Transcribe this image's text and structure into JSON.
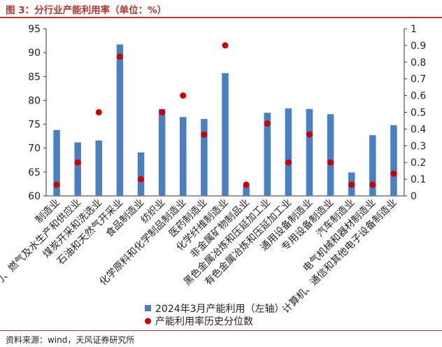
{
  "figure": {
    "title": "图 3：分行业产能利用率（单位：%）",
    "source": "资料来源：wind，天风证券研究所"
  },
  "colors": {
    "bar": "#4a7fc1",
    "dot": "#cc0000",
    "accent": "#c0392b",
    "axis": "#333333"
  },
  "chart_data": {
    "type": "bar",
    "title": "",
    "categories": [
      "制造业",
      "电力、热力、燃气及水生产和供应业",
      "煤炭开采和洗选业",
      "石油和天然气开采业",
      "食品制造业",
      "纺织业",
      "化学原料和化学制品制造业",
      "医药制造业",
      "化学纤维制造业",
      "非金属矿物制品业",
      "黑色金属冶炼和压延加工业",
      "有色金属冶炼和压延加工业",
      "通用设备制造业",
      "专用设备制造业",
      "汽车制造业",
      "电气机械和器材制造业",
      "计算机、通信和其他电子设备制造业"
    ],
    "series": [
      {
        "name": "2024年3月产能利用（左轴）",
        "type": "bar",
        "axis": "left",
        "values": [
          73.8,
          71.2,
          71.6,
          91.7,
          69.1,
          78.2,
          76.5,
          76.1,
          85.7,
          62.1,
          77.4,
          78.3,
          78.2,
          77.1,
          64.9,
          72.7,
          74.8
        ]
      },
      {
        "name": "产能利用率历史分位数",
        "type": "scatter",
        "axis": "right",
        "values": [
          0.067,
          0.2,
          0.5,
          0.833,
          0.1,
          0.5,
          0.6,
          0.367,
          0.9,
          0.067,
          0.433,
          0.2,
          0.367,
          0.2,
          0.067,
          0.067,
          0.133
        ]
      }
    ],
    "left_axis": {
      "min": 60,
      "max": 95,
      "ticks": [
        60,
        65,
        70,
        75,
        80,
        85,
        90,
        95
      ]
    },
    "right_axis": {
      "min": 0,
      "max": 1,
      "ticks": [
        0,
        0.1,
        0.2,
        0.3,
        0.4,
        0.5,
        0.6,
        0.7,
        0.8,
        0.9,
        1
      ]
    },
    "legend": "bottom",
    "grid": false
  }
}
